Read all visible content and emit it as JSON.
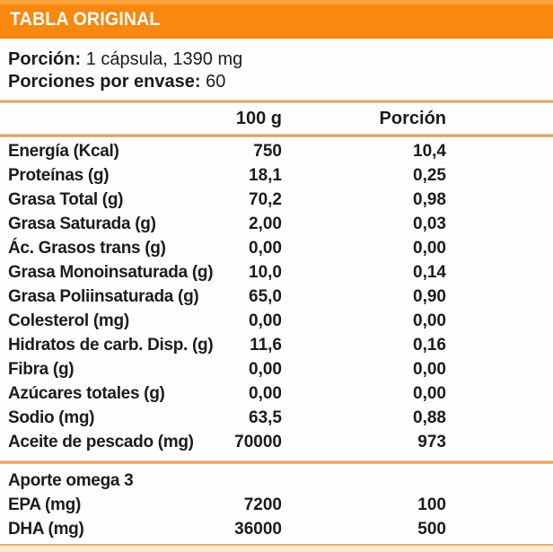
{
  "header": {
    "title": "TABLA ORIGINAL"
  },
  "serving": {
    "portion_label": "Porción:",
    "portion_value": "1 cápsula, 1390 mg",
    "servings_label": "Porciones por envase:",
    "servings_value": "60"
  },
  "columns": {
    "per_100g": "100 g",
    "per_portion": "Porción"
  },
  "rows": [
    {
      "label": "Energía (Kcal)",
      "per_100g": "750",
      "per_portion": "10,4"
    },
    {
      "label": "Proteínas (g)",
      "per_100g": "18,1",
      "per_portion": "0,25"
    },
    {
      "label": "Grasa Total (g)",
      "per_100g": "70,2",
      "per_portion": "0,98"
    },
    {
      "label": "Grasa Saturada (g)",
      "per_100g": "2,00",
      "per_portion": "0,03"
    },
    {
      "label": "Ác. Grasos trans (g)",
      "per_100g": "0,00",
      "per_portion": "0,00"
    },
    {
      "label": "Grasa Monoinsaturada (g)",
      "per_100g": "10,0",
      "per_portion": "0,14"
    },
    {
      "label": "Grasa Poliinsaturada (g)",
      "per_100g": "65,0",
      "per_portion": "0,90"
    },
    {
      "label": "Colesterol (mg)",
      "per_100g": "0,00",
      "per_portion": "0,00"
    },
    {
      "label": "Hidratos de carb. Disp. (g)",
      "per_100g": "11,6",
      "per_portion": "0,16"
    },
    {
      "label": "Fibra (g)",
      "per_100g": "0,00",
      "per_portion": "0,00"
    },
    {
      "label": "Azúcares totales (g)",
      "per_100g": "0,00",
      "per_portion": "0,00"
    },
    {
      "label": "Sodio (mg)",
      "per_100g": "63,5",
      "per_portion": "0,88"
    },
    {
      "label": "Aceite de pescado (mg)",
      "per_100g": "70000",
      "per_portion": "973"
    }
  ],
  "omega_section": {
    "header": "Aporte omega 3",
    "rows": [
      {
        "label": "EPA (mg)",
        "per_100g": "7200",
        "per_portion": "100"
      },
      {
        "label": "DHA (mg)",
        "per_100g": "36000",
        "per_portion": "500"
      }
    ]
  },
  "colors": {
    "header_orange": "#F8880F",
    "header_orange_light": "#FBA53F",
    "separator_tan": "#DCA76F",
    "separator_orange": "#E5A35E",
    "bottom_bar_cream": "#FAE9D1",
    "text": "#1B1B1B",
    "title_text": "#FFFFFF"
  }
}
